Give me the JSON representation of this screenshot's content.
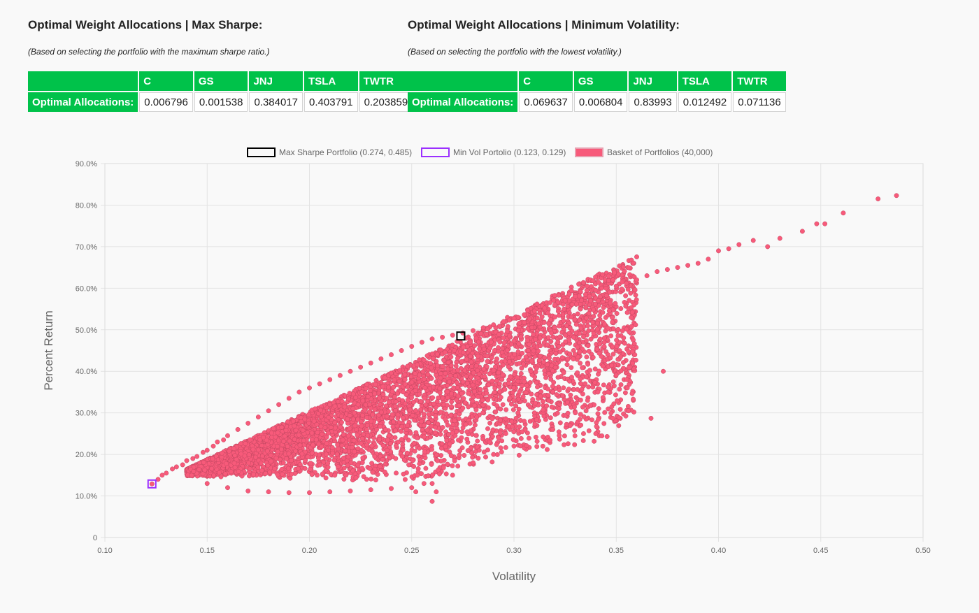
{
  "max_sharpe": {
    "title": "Optimal Weight Allocations | Max Sharpe:",
    "note": "(Based on selecting the portfolio with the maximum sharpe ratio.)",
    "columns": [
      "C",
      "GS",
      "JNJ",
      "TSLA",
      "TWTR"
    ],
    "row_label": "Optimal Allocations:",
    "values": [
      "0.006796",
      "0.001538",
      "0.384017",
      "0.403791",
      "0.203859"
    ]
  },
  "min_vol": {
    "title": "Optimal Weight Allocations | Minimum Volatility:",
    "note": "(Based on selecting the portfolio with the lowest volatility.)",
    "columns": [
      "C",
      "GS",
      "JNJ",
      "TSLA",
      "TWTR"
    ],
    "row_label": "Optimal Allocations:",
    "values": [
      "0.069637",
      "0.006804",
      "0.83993",
      "0.012492",
      "0.071136"
    ]
  },
  "colors": {
    "header_green": "#00c24a",
    "scatter_fill": "#f75a7a",
    "max_sharpe_marker": "#000000",
    "min_vol_marker": "#9b30ff"
  },
  "chart_data": {
    "type": "scatter",
    "xlabel": "Volatility",
    "ylabel": "Percent Return",
    "xlim": [
      0.1,
      0.5
    ],
    "ylim": [
      0,
      0.9
    ],
    "x_ticks": [
      "0.10",
      "0.15",
      "0.20",
      "0.25",
      "0.30",
      "0.35",
      "0.40",
      "0.45",
      "0.50"
    ],
    "y_ticks": [
      "0",
      "10.0%",
      "20.0%",
      "30.0%",
      "40.0%",
      "50.0%",
      "60.0%",
      "70.0%",
      "80.0%",
      "90.0%"
    ],
    "grid": true,
    "legend_position": "top-center",
    "series": [
      {
        "name": "Max Sharpe Portfolio (0.274, 0.485)",
        "marker": "hollow-square",
        "x": [
          0.274
        ],
        "y": [
          0.485
        ]
      },
      {
        "name": "Min Vol Portolio (0.123, 0.129)",
        "marker": "hollow-square",
        "x": [
          0.123
        ],
        "y": [
          0.129
        ]
      },
      {
        "name": "Basket of Portfolios (40,000)",
        "marker": "circle",
        "x": [
          0.123,
          0.126,
          0.128,
          0.13,
          0.133,
          0.135,
          0.138,
          0.14,
          0.143,
          0.145,
          0.148,
          0.15,
          0.153,
          0.155,
          0.158,
          0.16,
          0.165,
          0.17,
          0.175,
          0.18,
          0.185,
          0.19,
          0.195,
          0.2,
          0.205,
          0.21,
          0.215,
          0.22,
          0.225,
          0.23,
          0.235,
          0.24,
          0.245,
          0.25,
          0.255,
          0.26,
          0.265,
          0.27,
          0.275,
          0.28,
          0.285,
          0.29,
          0.295,
          0.3,
          0.305,
          0.31,
          0.315,
          0.32,
          0.325,
          0.33,
          0.335,
          0.34,
          0.345,
          0.35,
          0.355,
          0.36,
          0.365,
          0.37,
          0.375,
          0.38,
          0.385,
          0.39,
          0.395,
          0.4,
          0.405,
          0.41,
          0.417,
          0.424,
          0.43,
          0.441,
          0.448,
          0.452,
          0.461,
          0.478,
          0.487,
          0.15,
          0.16,
          0.17,
          0.18,
          0.19,
          0.2,
          0.21,
          0.22,
          0.23,
          0.24,
          0.25,
          0.26,
          0.27,
          0.28,
          0.29,
          0.3,
          0.26,
          0.262,
          0.252,
          0.256,
          0.283,
          0.288,
          0.296,
          0.305,
          0.31,
          0.313,
          0.318,
          0.322,
          0.33,
          0.334,
          0.336,
          0.34,
          0.346,
          0.349,
          0.373,
          0.356,
          0.367,
          0.319,
          0.317,
          0.302,
          0.3,
          0.305
        ],
        "y": [
          0.129,
          0.14,
          0.15,
          0.155,
          0.165,
          0.17,
          0.175,
          0.185,
          0.19,
          0.195,
          0.205,
          0.21,
          0.22,
          0.23,
          0.235,
          0.245,
          0.26,
          0.275,
          0.29,
          0.305,
          0.32,
          0.335,
          0.35,
          0.36,
          0.37,
          0.38,
          0.39,
          0.4,
          0.41,
          0.42,
          0.43,
          0.44,
          0.45,
          0.46,
          0.47,
          0.478,
          0.482,
          0.487,
          0.492,
          0.498,
          0.505,
          0.512,
          0.52,
          0.528,
          0.536,
          0.545,
          0.552,
          0.56,
          0.57,
          0.58,
          0.585,
          0.595,
          0.6,
          0.605,
          0.612,
          0.62,
          0.63,
          0.64,
          0.645,
          0.65,
          0.655,
          0.66,
          0.67,
          0.69,
          0.695,
          0.705,
          0.715,
          0.7,
          0.72,
          0.737,
          0.755,
          0.755,
          0.781,
          0.815,
          0.823,
          0.13,
          0.12,
          0.112,
          0.11,
          0.108,
          0.108,
          0.11,
          0.112,
          0.115,
          0.118,
          0.12,
          0.13,
          0.15,
          0.18,
          0.2,
          0.22,
          0.087,
          0.11,
          0.11,
          0.13,
          0.21,
          0.23,
          0.25,
          0.28,
          0.3,
          0.34,
          0.26,
          0.31,
          0.3,
          0.25,
          0.33,
          0.25,
          0.35,
          0.365,
          0.4,
          0.305,
          0.287,
          0.26,
          0.33,
          0.3,
          0.33,
          0.375
        ]
      }
    ]
  }
}
